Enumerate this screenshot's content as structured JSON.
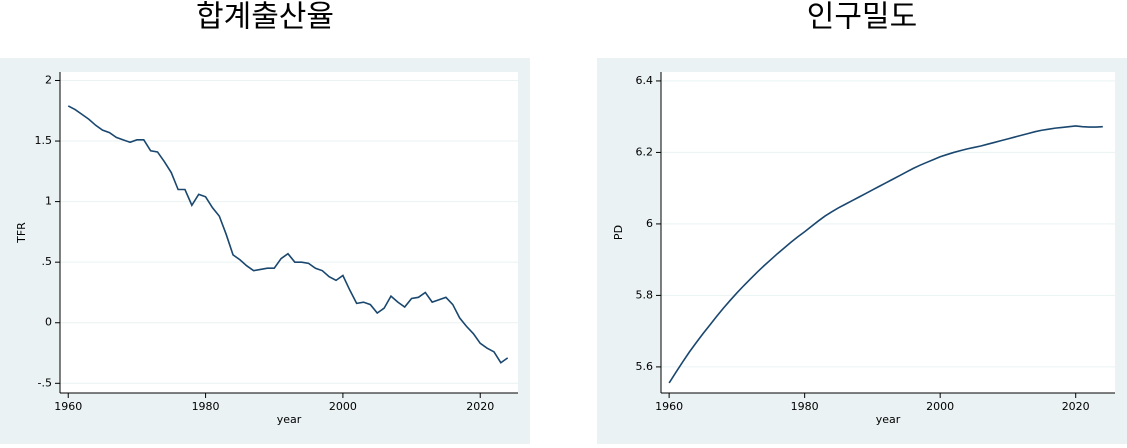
{
  "chart_data": [
    {
      "type": "line",
      "title": "합계출산율",
      "xlabel": "year",
      "ylabel": "TFR",
      "color": "#1a476f",
      "grid": true,
      "x": [
        1960,
        1961,
        1962,
        1963,
        1964,
        1965,
        1966,
        1967,
        1968,
        1969,
        1970,
        1971,
        1972,
        1973,
        1974,
        1975,
        1976,
        1977,
        1978,
        1979,
        1980,
        1981,
        1982,
        1983,
        1984,
        1985,
        1986,
        1987,
        1988,
        1989,
        1990,
        1991,
        1992,
        1993,
        1994,
        1995,
        1996,
        1997,
        1998,
        1999,
        2000,
        2001,
        2002,
        2003,
        2004,
        2005,
        2006,
        2007,
        2008,
        2009,
        2010,
        2011,
        2012,
        2013,
        2014,
        2015,
        2016,
        2017,
        2018,
        2019,
        2020,
        2021,
        2022,
        2023,
        2024
      ],
      "values": [
        1.79,
        1.76,
        1.72,
        1.68,
        1.63,
        1.59,
        1.57,
        1.53,
        1.51,
        1.49,
        1.51,
        1.51,
        1.42,
        1.41,
        1.33,
        1.24,
        1.1,
        1.1,
        0.97,
        1.06,
        1.04,
        0.95,
        0.88,
        0.73,
        0.56,
        0.52,
        0.47,
        0.43,
        0.44,
        0.45,
        0.45,
        0.53,
        0.57,
        0.5,
        0.5,
        0.49,
        0.45,
        0.43,
        0.38,
        0.35,
        0.39,
        0.27,
        0.16,
        0.17,
        0.15,
        0.08,
        0.12,
        0.22,
        0.17,
        0.13,
        0.2,
        0.21,
        0.25,
        0.17,
        0.19,
        0.21,
        0.15,
        0.04,
        -0.03,
        -0.09,
        -0.17,
        -0.21,
        -0.24,
        -0.33,
        -0.29
      ],
      "xlim": [
        1958.8,
        2025.5
      ],
      "xticks": [
        1960,
        1980,
        2000,
        2020
      ],
      "ylim": [
        -0.58,
        2.07
      ],
      "yticks": [
        2,
        1.5,
        1,
        {
          "value": 0.5,
          "label": ".5"
        },
        0,
        {
          "value": -0.5,
          "label": "-.5"
        }
      ]
    },
    {
      "type": "line",
      "title": "인구밀도",
      "xlabel": "year",
      "ylabel": "PD",
      "color": "#1a476f",
      "grid": true,
      "x": [
        1960,
        1961,
        1962,
        1963,
        1964,
        1965,
        1966,
        1967,
        1968,
        1969,
        1970,
        1971,
        1972,
        1973,
        1974,
        1975,
        1976,
        1977,
        1978,
        1979,
        1980,
        1981,
        1982,
        1983,
        1984,
        1985,
        1986,
        1987,
        1988,
        1989,
        1990,
        1991,
        1992,
        1993,
        1994,
        1995,
        1996,
        1997,
        1998,
        1999,
        2000,
        2001,
        2002,
        2003,
        2004,
        2005,
        2006,
        2007,
        2008,
        2009,
        2010,
        2011,
        2012,
        2013,
        2014,
        2015,
        2016,
        2017,
        2018,
        2019,
        2020,
        2021,
        2022,
        2023,
        2024
      ],
      "values": [
        5.555,
        5.585,
        5.614,
        5.642,
        5.668,
        5.693,
        5.717,
        5.741,
        5.764,
        5.786,
        5.807,
        5.827,
        5.846,
        5.865,
        5.883,
        5.9,
        5.917,
        5.933,
        5.949,
        5.964,
        5.978,
        5.993,
        6.008,
        6.022,
        6.034,
        6.045,
        6.055,
        6.065,
        6.075,
        6.085,
        6.095,
        6.105,
        6.115,
        6.125,
        6.135,
        6.145,
        6.155,
        6.164,
        6.172,
        6.18,
        6.188,
        6.194,
        6.2,
        6.205,
        6.21,
        6.214,
        6.218,
        6.223,
        6.228,
        6.233,
        6.238,
        6.243,
        6.248,
        6.253,
        6.258,
        6.262,
        6.265,
        6.268,
        6.27,
        6.272,
        6.274,
        6.272,
        6.271,
        6.271,
        6.272
      ],
      "xlim": [
        1958.8,
        2025.8
      ],
      "xticks": [
        1960,
        1980,
        2000,
        2020
      ],
      "ylim": [
        5.527,
        6.425
      ],
      "yticks": [
        6.4,
        6.2,
        6,
        5.8,
        5.6
      ]
    }
  ]
}
